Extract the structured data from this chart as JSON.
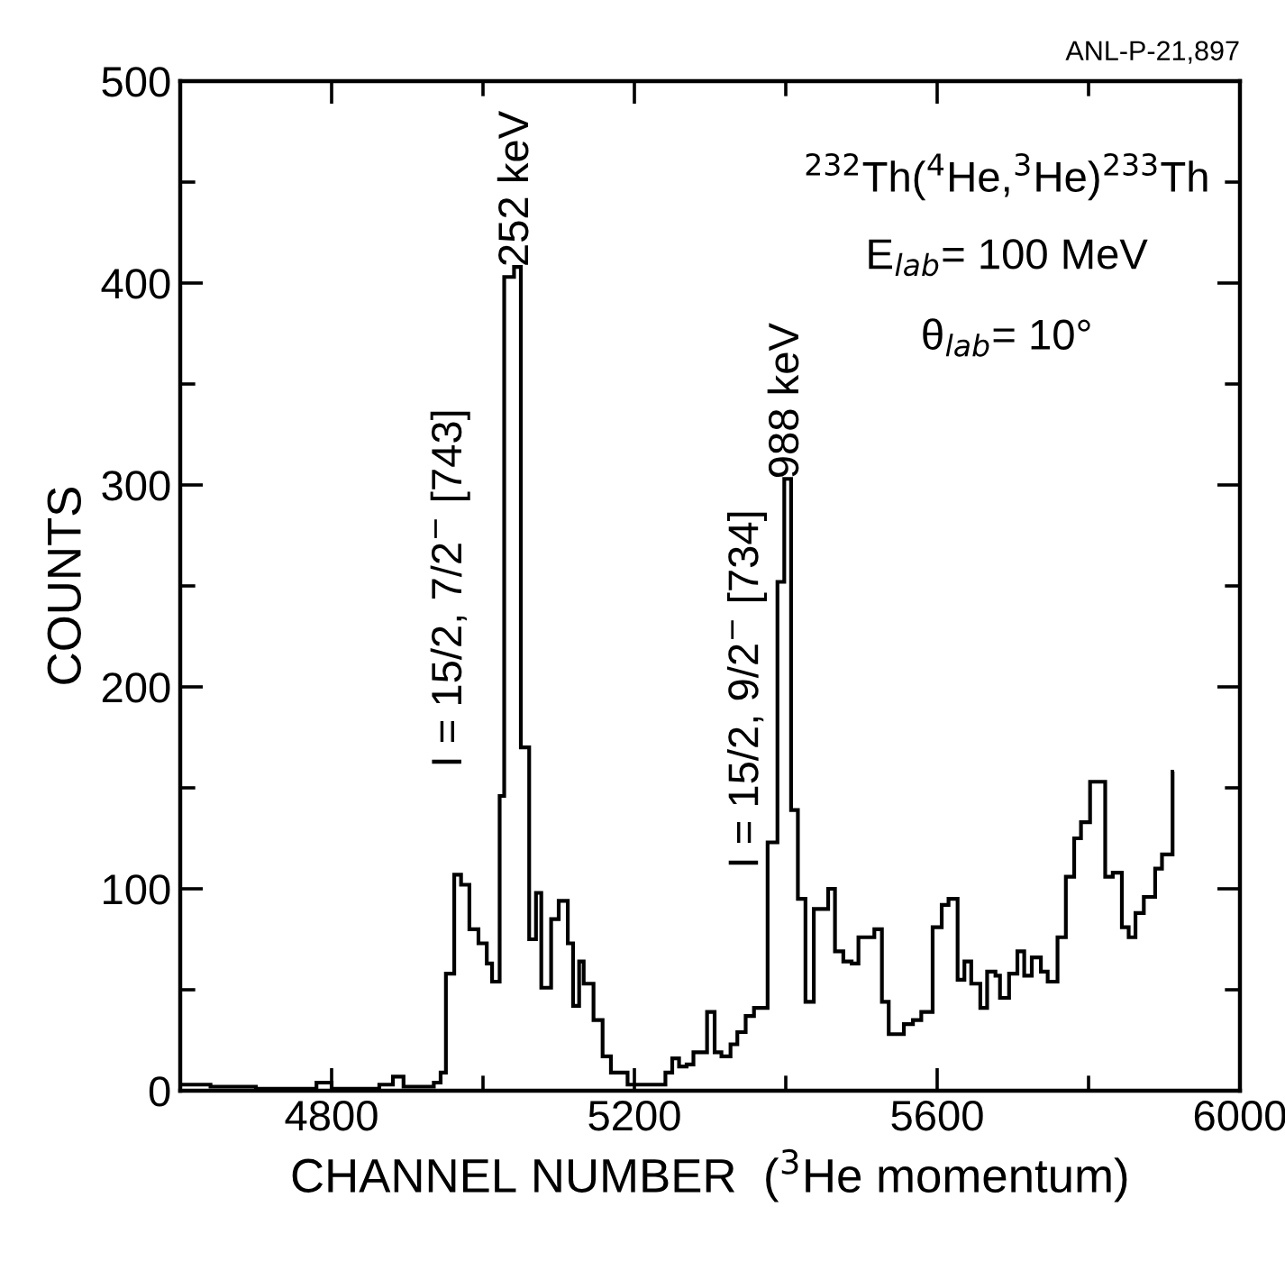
{
  "chart_data": {
    "type": "histogram",
    "xlabel": "CHANNEL NUMBER  ($^{3}$He momentum)",
    "ylabel": "COUNTS",
    "color": "#000000",
    "bins": [
      4600,
      4640,
      4700,
      4780,
      4800,
      4863,
      4881,
      4895,
      4935,
      4944,
      4951,
      4962,
      4971,
      4982,
      4994,
      5005,
      5012,
      5022,
      5028,
      5041,
      5050,
      5061,
      5070,
      5077,
      5090,
      5100,
      5112,
      5119,
      5127,
      5133,
      5146,
      5158,
      5169,
      5191,
      5241,
      5250,
      5259,
      5269,
      5278,
      5296,
      5306,
      5315,
      5327,
      5336,
      5347,
      5358,
      5376,
      5389,
      5398,
      5407,
      5416,
      5426,
      5437,
      5447,
      5456,
      5465,
      5476,
      5487,
      5496,
      5508,
      5517,
      5527,
      5536,
      5556,
      5568,
      5579,
      5594,
      5606,
      5615,
      5627,
      5636,
      5645,
      5657,
      5666,
      5677,
      5683,
      5695,
      5706,
      5715,
      5725,
      5737,
      5746,
      5759,
      5770,
      5781,
      5790,
      5802,
      5822,
      5832,
      5844,
      5853,
      5862,
      5873,
      5888,
      5897,
      5911,
      5913
    ],
    "values": [
      3,
      2,
      1,
      4,
      1,
      3,
      7,
      2,
      4,
      9,
      58,
      107,
      102,
      80,
      73,
      63,
      54,
      146,
      403,
      408,
      170,
      75,
      98,
      51,
      85,
      94,
      73,
      42,
      64,
      53,
      35,
      17,
      9,
      3,
      9,
      16,
      12,
      13,
      19,
      39,
      19,
      17,
      23,
      29,
      37,
      41,
      123,
      252,
      303,
      139,
      95,
      44,
      90,
      90,
      100,
      69,
      64,
      63,
      76,
      76,
      80,
      44,
      28,
      33,
      35,
      39,
      81,
      92,
      95,
      55,
      64,
      53,
      41,
      59,
      57,
      46,
      58,
      69,
      57,
      66,
      59,
      54,
      76,
      106,
      125,
      133,
      153,
      106,
      108,
      81,
      76,
      88,
      96,
      110,
      117,
      158
    ],
    "xlim": [
      4600,
      6000
    ],
    "xticks": [
      {
        "value": 4600,
        "label": null
      },
      4800,
      {
        "value": 5000,
        "label": null
      },
      5200,
      {
        "value": 5400,
        "label": null
      },
      5600,
      {
        "value": 5800,
        "label": null
      },
      6000
    ],
    "ylim": [
      0,
      500
    ],
    "yticks": [
      0,
      {
        "value": 50,
        "label": null
      },
      100,
      {
        "value": 150,
        "label": null
      },
      200,
      {
        "value": 250,
        "label": null
      },
      300,
      {
        "value": 350,
        "label": null
      },
      400,
      {
        "value": 450,
        "label": null
      },
      500
    ],
    "grid": false,
    "annotations": [
      "I = 15/2, 7/2$^{−}$ [743]",
      {
        "text": "252 keV",
        "x": 5045,
        "y": 408
      },
      "I = 15/2, 9/2$^{−}$ [734]",
      {
        "text": "988 keV",
        "x": 5402,
        "y": 303
      },
      "$^{232}$Th($^{4}$He,$^{3}$He)$^{233}$Th",
      "E$_{lab}$= 100 MeV",
      "θ$_{lab}$= 10°",
      "ANL-P-21,897"
    ]
  }
}
